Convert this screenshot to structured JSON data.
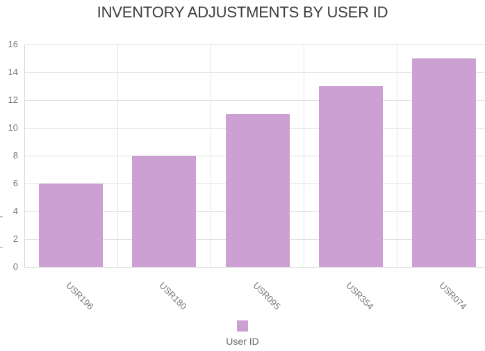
{
  "title": "INVENTORY ADJUSTMENTS BY USER ID",
  "colors": {
    "bar": "#CDA0D3",
    "grid": "#E1E1E1",
    "axis_line": "#D8D8D8",
    "tick_text": "#767676",
    "title_text": "#3C3C3C",
    "legend_text": "#6B6B6B",
    "background": "#FFFFFF"
  },
  "chart_data": {
    "type": "bar",
    "title": "INVENTORY ADJUSTMENTS BY USER ID",
    "categories": [
      "USR196",
      "USR180",
      "USR095",
      "USR354",
      "USR074"
    ],
    "values": [
      6,
      8,
      11,
      13,
      15
    ],
    "xlabel": "",
    "ylabel": "",
    "ylim": [
      0,
      16
    ],
    "yticks": [
      0,
      2,
      4,
      6,
      8,
      10,
      12,
      14,
      16
    ],
    "grid": true,
    "legend": {
      "label": "User ID",
      "position": "bottom"
    },
    "bar_color": "#CDA0D3"
  }
}
